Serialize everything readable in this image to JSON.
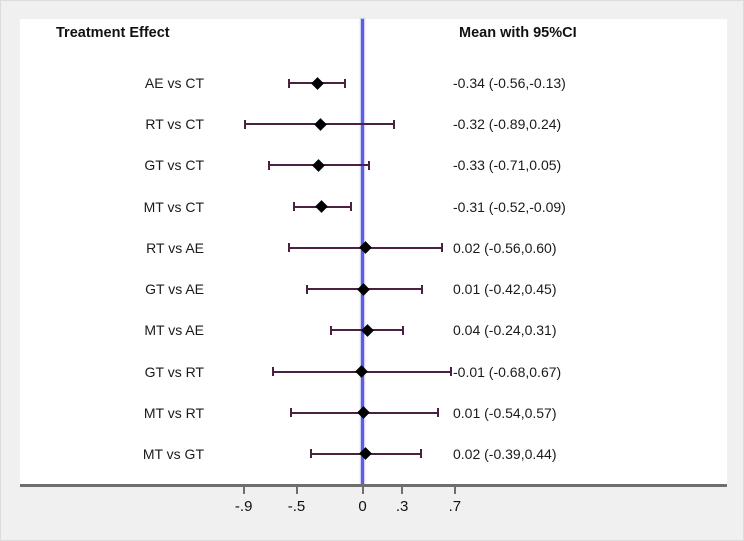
{
  "header": {
    "left_title": "Treatment Effect",
    "right_title": "Mean with 95%CI"
  },
  "colors": {
    "background": "#f0f0f0",
    "plot_background": "#ffffff",
    "zero_line": "#5d5de6",
    "axis": "#6e6e6e",
    "ci_line": "#4a2140",
    "marker": "#000000"
  },
  "chart_data": {
    "type": "forest",
    "title": "Treatment Effect",
    "value_column_title": "Mean with 95%CI",
    "rows": [
      {
        "label": "AE vs CT",
        "mean": -0.34,
        "lo": -0.56,
        "hi": -0.13,
        "text": "-0.34 (-0.56,-0.13)"
      },
      {
        "label": "RT vs CT",
        "mean": -0.32,
        "lo": -0.89,
        "hi": 0.24,
        "text": "-0.32 (-0.89,0.24)"
      },
      {
        "label": "GT vs CT",
        "mean": -0.33,
        "lo": -0.71,
        "hi": 0.05,
        "text": "-0.33 (-0.71,0.05)"
      },
      {
        "label": "MT vs CT",
        "mean": -0.31,
        "lo": -0.52,
        "hi": -0.09,
        "text": "-0.31 (-0.52,-0.09)"
      },
      {
        "label": "RT vs AE",
        "mean": 0.02,
        "lo": -0.56,
        "hi": 0.6,
        "text": "0.02 (-0.56,0.60)"
      },
      {
        "label": "GT vs AE",
        "mean": 0.01,
        "lo": -0.42,
        "hi": 0.45,
        "text": "0.01 (-0.42,0.45)"
      },
      {
        "label": "MT vs AE",
        "mean": 0.04,
        "lo": -0.24,
        "hi": 0.31,
        "text": "0.04 (-0.24,0.31)"
      },
      {
        "label": "GT vs RT",
        "mean": -0.01,
        "lo": -0.68,
        "hi": 0.67,
        "text": "-0.01 (-0.68,0.67)"
      },
      {
        "label": "MT vs RT",
        "mean": 0.01,
        "lo": -0.54,
        "hi": 0.57,
        "text": "0.01 (-0.54,0.57)"
      },
      {
        "label": "MT vs GT",
        "mean": 0.02,
        "lo": -0.39,
        "hi": 0.44,
        "text": "0.02 (-0.39,0.44)"
      }
    ],
    "x_ticks": [
      -0.9,
      -0.5,
      0,
      0.3,
      0.7
    ],
    "x_tick_labels": [
      "-.9",
      "-.5",
      "0",
      ".3",
      ".7"
    ],
    "zero_reference": 0,
    "xlim": [
      -2.6,
      2.75
    ],
    "legend": "none",
    "grid": false
  }
}
